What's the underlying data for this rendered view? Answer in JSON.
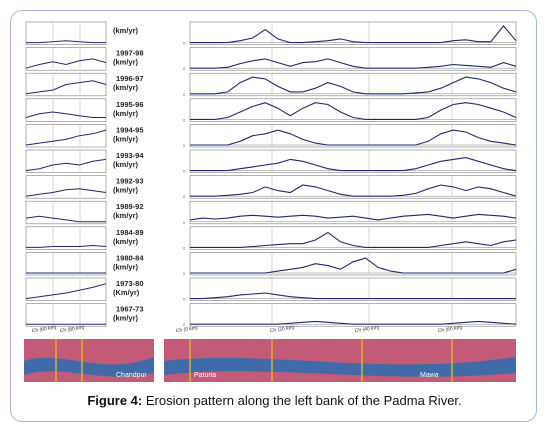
{
  "caption": {
    "label": "Figure 4:",
    "text": " Erosion pattern along the left bank of the Padma River."
  },
  "periods": [
    "(km/yr)",
    "1997-98\n(km/yr)",
    "1996-97\n(km/yr)",
    "1995-96\n(km/yr)",
    "1994-95\n(km/yr)",
    "1993-94\n(km/yr)",
    "1992-93\n(km/yr)",
    "1989-92\n(km/yr)",
    "1984-89\n(km/yr)",
    "1980-84\n(km/yr)",
    "1973-80\n(Km/yr)",
    "1967-73\n(km/yr)"
  ],
  "left_axis_ticks": [
    "Ch (60 km)",
    "Ch (80 km)"
  ],
  "right_axis_ticks": [
    "Ch (0 km)",
    "Ch (20 km)",
    "Ch (40 km)",
    "Ch (60 km)"
  ],
  "map_labels": {
    "left": "Chandpur",
    "right_1": "Paturia",
    "right_2": "Mawa"
  },
  "colors": {
    "line": "#1e2a6e",
    "grid": "#7f7f7f",
    "marker": "#e0b020",
    "map_water": "#2a6fb0",
    "map_land": "#c25a78"
  },
  "chart_data": {
    "type": "line",
    "title": "",
    "xlabel": "",
    "ylabel": "",
    "series": [
      {
        "name": "(km/yr)",
        "left": [
          0,
          0,
          0.05,
          0.1,
          0.05,
          0,
          0
        ],
        "right": [
          0,
          0,
          0,
          0,
          0.1,
          0.25,
          0.7,
          0.2,
          0,
          0,
          0.05,
          0.1,
          0.2,
          0.05,
          0,
          0,
          0,
          0,
          0,
          0,
          0,
          0.1,
          0.15,
          0.05,
          0.05,
          0.9,
          0.1
        ]
      },
      {
        "name": "1997-98 (km/yr)",
        "left": [
          0,
          0.2,
          0.35,
          0.2,
          0.4,
          0.5,
          0.3
        ],
        "right": [
          0,
          0,
          0,
          0.05,
          0.25,
          0.4,
          0.5,
          0.3,
          0.1,
          0.3,
          0.35,
          0.5,
          0.3,
          0.1,
          0,
          0,
          0,
          0,
          0,
          0.05,
          0.1,
          0.2,
          0.15,
          0.1,
          0.05,
          0.3,
          0.1
        ]
      },
      {
        "name": "1996-97 (km/yr)",
        "left": [
          0,
          0.1,
          0.2,
          0.5,
          0.6,
          0.7,
          0.5
        ],
        "right": [
          0,
          0,
          0,
          0.1,
          0.6,
          0.9,
          0.8,
          0.4,
          0.1,
          0.1,
          0.3,
          0.6,
          0.4,
          0.1,
          0,
          0,
          0,
          0,
          0.05,
          0.1,
          0.3,
          0.6,
          0.9,
          0.8,
          0.6,
          0.3,
          0.1
        ]
      },
      {
        "name": "1995-96 (km/yr)",
        "left": [
          0.1,
          0.3,
          0.4,
          0.3,
          0.2,
          0.1,
          0.1
        ],
        "right": [
          0,
          0,
          0,
          0.1,
          0.4,
          0.7,
          0.9,
          0.6,
          0.2,
          0.6,
          0.9,
          0.8,
          0.4,
          0.1,
          0,
          0,
          0,
          0,
          0,
          0.1,
          0.5,
          0.8,
          0.9,
          0.8,
          0.6,
          0.4,
          0.1
        ]
      },
      {
        "name": "1994-95 (km/yr)",
        "left": [
          0,
          0.1,
          0.2,
          0.3,
          0.5,
          0.6,
          0.8
        ],
        "right": [
          0,
          0,
          0,
          0,
          0.2,
          0.5,
          0.6,
          0.8,
          0.6,
          0.3,
          0.1,
          0,
          0,
          0,
          0,
          0,
          0,
          0,
          0,
          0.2,
          0.6,
          0.8,
          0.7,
          0.4,
          0.2,
          0.1,
          0
        ]
      },
      {
        "name": "1993-94 (km/yr)",
        "left": [
          0,
          0.1,
          0.3,
          0.4,
          0.3,
          0.5,
          0.6
        ],
        "right": [
          0,
          0,
          0,
          0,
          0.1,
          0.2,
          0.3,
          0.4,
          0.6,
          0.5,
          0.3,
          0.1,
          0,
          0,
          0,
          0,
          0,
          0,
          0.1,
          0.3,
          0.5,
          0.6,
          0.7,
          0.5,
          0.3,
          0.1,
          0
        ]
      },
      {
        "name": "1992-93 (km/yr)",
        "left": [
          0,
          0.1,
          0.2,
          0.35,
          0.4,
          0.3,
          0.2
        ],
        "right": [
          0,
          0,
          0,
          0.05,
          0.1,
          0.2,
          0.5,
          0.3,
          0.2,
          0.6,
          0.5,
          0.3,
          0.1,
          0,
          0,
          0,
          0,
          0.05,
          0.15,
          0.4,
          0.6,
          0.5,
          0.3,
          0.5,
          0.4,
          0.2,
          0
        ]
      },
      {
        "name": "1989-92 (km/yr)",
        "left": [
          0.2,
          0.3,
          0.2,
          0.1,
          0,
          0,
          0
        ],
        "right": [
          0.1,
          0.2,
          0.15,
          0.2,
          0.3,
          0.35,
          0.3,
          0.25,
          0.3,
          0.35,
          0.3,
          0.2,
          0.25,
          0.3,
          0.2,
          0.1,
          0.2,
          0.3,
          0.35,
          0.4,
          0.3,
          0.2,
          0.3,
          0.4,
          0.35,
          0.3,
          0.2
        ]
      },
      {
        "name": "1984-89 (km/yr)",
        "left": [
          0,
          0,
          0.05,
          0.05,
          0.05,
          0.1,
          0.05
        ],
        "right": [
          0,
          0,
          0,
          0,
          0,
          0.05,
          0.1,
          0.15,
          0.2,
          0.2,
          0.4,
          0.8,
          0.3,
          0.1,
          0,
          0,
          0,
          0,
          0,
          0,
          0.1,
          0.2,
          0.3,
          0.2,
          0.1,
          0.3,
          0.4
        ]
      },
      {
        "name": "1980-84 (km/yr)",
        "left": [
          0,
          0,
          0,
          0,
          0,
          0,
          0
        ],
        "right": [
          0,
          0,
          0,
          0,
          0,
          0,
          0,
          0.1,
          0.2,
          0.3,
          0.5,
          0.4,
          0.2,
          0.6,
          0.8,
          0.3,
          0.1,
          0,
          0,
          0,
          0,
          0,
          0,
          0,
          0,
          0,
          0.2
        ]
      },
      {
        "name": "1973-80 (Km/yr)",
        "left": [
          0,
          0.1,
          0.2,
          0.3,
          0.45,
          0.6,
          0.8
        ],
        "right": [
          0,
          0,
          0.05,
          0.1,
          0.2,
          0.25,
          0.3,
          0.2,
          0.1,
          0.05,
          0,
          0,
          0,
          0,
          0,
          0,
          0,
          0,
          0,
          0,
          0,
          0,
          0,
          0,
          0,
          0,
          0
        ]
      },
      {
        "name": "1967-73 (km/yr)",
        "left": [
          0,
          0,
          0,
          0,
          0,
          0,
          0
        ],
        "right": [
          0,
          0,
          0,
          0,
          0,
          0,
          0,
          0,
          0.05,
          0.1,
          0.15,
          0.1,
          0.05,
          0,
          0,
          0,
          0,
          0,
          0,
          0,
          0,
          0.05,
          0.1,
          0.15,
          0.1,
          0.05,
          0
        ]
      }
    ],
    "grid": true
  }
}
